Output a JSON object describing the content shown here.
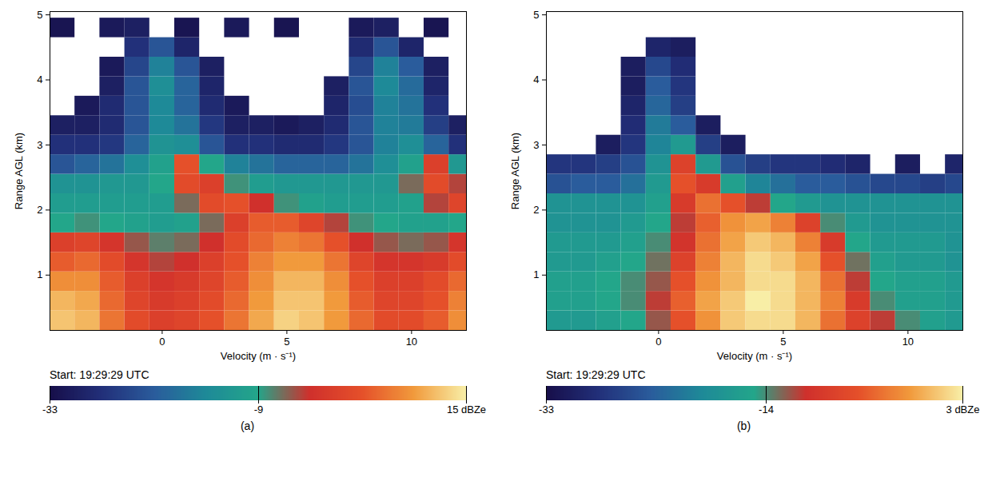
{
  "chart_data": [
    {
      "type": "heatmap",
      "panel": "(a)",
      "x_label": "Velocity (m · s⁻¹)",
      "y_label": "Range AGL (km)",
      "subtitle": "Start: 19:29:29 UTC",
      "xlim": [
        -4.5,
        12.2
      ],
      "ylim": [
        0.15,
        5.05
      ],
      "xticks": [
        0,
        5,
        10
      ],
      "yticks": [
        1,
        2,
        3,
        4,
        5
      ],
      "x_edges": [
        -4.5,
        -3.5,
        -2.5,
        -1.5,
        -0.5,
        0.5,
        1.5,
        2.5,
        3.5,
        4.5,
        5.5,
        6.5,
        7.5,
        8.5,
        9.5,
        10.5,
        11.5,
        12.5
      ],
      "y_edges": [
        0.15,
        0.45,
        0.75,
        1.05,
        1.35,
        1.65,
        1.95,
        2.25,
        2.55,
        2.85,
        3.15,
        3.45,
        3.75,
        4.05,
        4.35,
        4.65,
        4.95
      ],
      "cells": [
        [
          12,
          11,
          6,
          2,
          0,
          1,
          3,
          6,
          10,
          13,
          12,
          9,
          5,
          2,
          2,
          4,
          8
        ],
        [
          11,
          10,
          5,
          1,
          -1,
          0,
          2,
          5,
          9,
          12,
          12,
          9,
          4,
          1,
          1,
          3,
          7
        ],
        [
          8,
          8,
          4,
          0,
          -2,
          -1,
          1,
          4,
          8,
          11,
          11,
          8,
          3,
          0,
          0,
          2,
          5
        ],
        [
          4,
          5,
          2,
          -2,
          -4,
          -3,
          0,
          3,
          7,
          9,
          9,
          6,
          1,
          -2,
          -2,
          -1,
          2
        ],
        [
          0,
          1,
          -2,
          -5,
          -7,
          -6,
          -3,
          2,
          5,
          7,
          6,
          3,
          -3,
          -5,
          -6,
          -5,
          -2
        ],
        [
          -9,
          -8,
          -9,
          -10,
          -11,
          -10,
          -6,
          0,
          4,
          4,
          1,
          -4,
          -8,
          -9,
          -10,
          -10,
          -9
        ],
        [
          -11,
          -11,
          -11,
          -11,
          -11,
          -6,
          2,
          3,
          -3,
          -8,
          -10,
          -11,
          -11,
          -11,
          -10,
          -4,
          1
        ],
        [
          -13,
          -13,
          -12,
          -12,
          -9,
          2,
          0,
          -8,
          -11,
          -12,
          -12,
          -12,
          -12,
          -12,
          -6,
          2,
          -4
        ],
        [
          -22,
          -20,
          -18,
          -14,
          -10,
          3,
          -9,
          -16,
          -18,
          -20,
          -20,
          -20,
          -18,
          -14,
          -10,
          0,
          -12
        ],
        [
          -27,
          -27,
          -26,
          -20,
          -13,
          -14,
          -22,
          -27,
          -27,
          -28,
          -28,
          -26,
          -22,
          -16,
          -14,
          -20,
          -27
        ],
        [
          -30,
          -30,
          -28,
          -22,
          -15,
          -18,
          -26,
          -30,
          -30,
          -31,
          -30,
          -28,
          -22,
          -16,
          -17,
          -25,
          -30
        ],
        [
          null,
          -31,
          -28,
          -22,
          -15,
          -20,
          -28,
          -31,
          null,
          null,
          null,
          -29,
          -23,
          -16,
          -18,
          -27,
          null
        ],
        [
          null,
          null,
          -30,
          -22,
          -14,
          -20,
          -29,
          null,
          null,
          null,
          null,
          -30,
          -22,
          -15,
          -19,
          -29,
          null
        ],
        [
          null,
          null,
          -31,
          -24,
          -16,
          -22,
          -30,
          null,
          null,
          null,
          null,
          null,
          -24,
          -16,
          -21,
          -30,
          null
        ],
        [
          null,
          null,
          null,
          -27,
          -22,
          -29,
          null,
          null,
          null,
          null,
          null,
          null,
          -28,
          -22,
          -29,
          null,
          null
        ],
        [
          -32,
          null,
          -31,
          -30,
          null,
          -32,
          null,
          -31,
          null,
          -32,
          null,
          null,
          -31,
          -30,
          null,
          -32,
          null
        ]
      ],
      "colorbar": {
        "range": [
          -33,
          15
        ],
        "ticks": [
          -33,
          -9,
          {
            "value": 15,
            "label": "15 dBZe"
          }
        ]
      }
    },
    {
      "type": "heatmap",
      "panel": "(b)",
      "x_label": "Velocity (m · s⁻¹)",
      "y_label": "Range AGL (km)",
      "subtitle": "Start: 19:29:29 UTC",
      "xlim": [
        -4.5,
        12.2
      ],
      "ylim": [
        0.15,
        5.05
      ],
      "xticks": [
        0,
        5,
        10
      ],
      "yticks": [
        1,
        2,
        3,
        4,
        5
      ],
      "x_edges": [
        -4.5,
        -3.5,
        -2.5,
        -1.5,
        -0.5,
        0.5,
        1.5,
        2.5,
        3.5,
        4.5,
        5.5,
        6.5,
        7.5,
        8.5,
        9.5,
        10.5,
        11.5,
        12.5
      ],
      "y_edges": [
        0.15,
        0.45,
        0.75,
        1.05,
        1.35,
        1.65,
        1.95,
        2.25,
        2.55,
        2.85,
        3.15,
        3.45,
        3.75,
        4.05,
        4.35,
        4.65,
        4.95
      ],
      "cells": [
        [
          -17,
          -17,
          -16,
          -15,
          -12,
          -6,
          -2,
          1,
          2,
          2,
          0,
          -4,
          -8,
          -11,
          -14,
          -16,
          -17
        ],
        [
          -16,
          -16,
          -15,
          -14,
          -11,
          -5,
          -1,
          1,
          3,
          2,
          0,
          -3,
          -9,
          -14,
          -16,
          -16,
          -17
        ],
        [
          -16,
          -16,
          -15,
          -14,
          -12,
          -6,
          -2,
          0,
          2,
          2,
          0,
          -4,
          -11,
          -15,
          -16,
          -16,
          -17
        ],
        [
          -17,
          -17,
          -16,
          -15,
          -13,
          -8,
          -3,
          0,
          2,
          1,
          -1,
          -6,
          -13,
          -16,
          -17,
          -17,
          -18
        ],
        [
          -17,
          -17,
          -17,
          -16,
          -14,
          -10,
          -4,
          -1,
          1,
          0,
          -3,
          -9,
          -15,
          -17,
          -17,
          -17,
          -18
        ],
        [
          -18,
          -18,
          -18,
          -17,
          -15,
          -11,
          -5,
          -2,
          -1,
          -3,
          -8,
          -14,
          -17,
          -18,
          -18,
          -18,
          -18
        ],
        [
          -18,
          -18,
          -18,
          -18,
          -16,
          -9,
          -4,
          -6,
          -11,
          -15,
          -17,
          -18,
          -18,
          -18,
          -18,
          -18,
          -18
        ],
        [
          -25,
          -24,
          -24,
          -22,
          -17,
          -6,
          -9,
          -16,
          -20,
          -22,
          -24,
          -24,
          -25,
          -26,
          -26,
          -27,
          -26
        ],
        [
          -28,
          -28,
          -27,
          -25,
          -18,
          -8,
          -17,
          -25,
          -27,
          -28,
          -28,
          -29,
          -30,
          null,
          -31,
          null,
          -30
        ],
        [
          null,
          null,
          -31,
          -28,
          -20,
          -17,
          -27,
          -31,
          null,
          null,
          null,
          null,
          null,
          null,
          null,
          null,
          null
        ],
        [
          null,
          null,
          null,
          -29,
          -21,
          -24,
          -31,
          null,
          null,
          null,
          null,
          null,
          null,
          null,
          null,
          null,
          null
        ],
        [
          null,
          null,
          null,
          -30,
          -23,
          -27,
          null,
          null,
          null,
          null,
          null,
          null,
          null,
          null,
          null,
          null,
          null
        ],
        [
          null,
          null,
          null,
          -31,
          -24,
          -28,
          null,
          null,
          null,
          null,
          null,
          null,
          null,
          null,
          null,
          null,
          null
        ],
        [
          null,
          null,
          null,
          -31,
          -26,
          -29,
          null,
          null,
          null,
          null,
          null,
          null,
          null,
          null,
          null,
          null,
          null
        ],
        [
          null,
          null,
          null,
          null,
          -30,
          -31,
          null,
          null,
          null,
          null,
          null,
          null,
          null,
          null,
          null,
          null,
          null
        ],
        [
          null,
          null,
          null,
          null,
          null,
          null,
          null,
          null,
          null,
          null,
          null,
          null,
          null,
          null,
          null,
          null,
          null
        ]
      ],
      "colorbar": {
        "range": [
          -33,
          3
        ],
        "ticks": [
          -33,
          -14,
          {
            "value": 3,
            "label": "3 dBZe"
          }
        ]
      }
    }
  ]
}
